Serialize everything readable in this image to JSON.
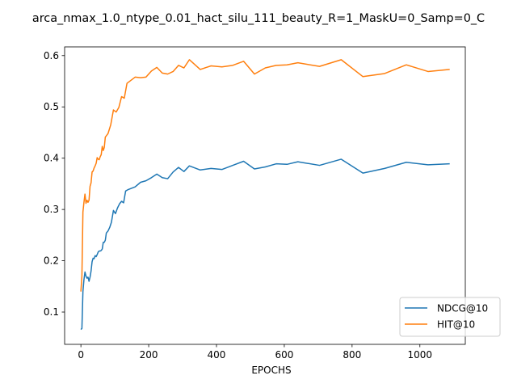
{
  "chart_data": {
    "type": "line",
    "title": "arca_nmax_1.0_ntype_0.01_hact_silu_111_beauty_R=1_MaskU=0_Samp=0_C",
    "xlabel": "EPOCHS",
    "ylabel": "",
    "xlim": [
      -48,
      1134
    ],
    "ylim": [
      0.037,
      0.617
    ],
    "xticks": [
      0,
      200,
      400,
      600,
      800,
      1000
    ],
    "yticks": [
      0.1,
      0.2,
      0.3,
      0.4,
      0.5,
      0.6
    ],
    "grid": false,
    "legend_position": "lower-right",
    "series": [
      {
        "name": "NDCG@10",
        "color": "#1f77b4",
        "points": [
          [
            0,
            0.066
          ],
          [
            3,
            0.068
          ],
          [
            6,
            0.14
          ],
          [
            9,
            0.163
          ],
          [
            12,
            0.178
          ],
          [
            15,
            0.17
          ],
          [
            18,
            0.166
          ],
          [
            21,
            0.168
          ],
          [
            24,
            0.16
          ],
          [
            27,
            0.168
          ],
          [
            30,
            0.18
          ],
          [
            33,
            0.198
          ],
          [
            36,
            0.205
          ],
          [
            39,
            0.204
          ],
          [
            42,
            0.21
          ],
          [
            45,
            0.208
          ],
          [
            48,
            0.212
          ],
          [
            51,
            0.217
          ],
          [
            54,
            0.219
          ],
          [
            57,
            0.219
          ],
          [
            60,
            0.22
          ],
          [
            63,
            0.223
          ],
          [
            66,
            0.236
          ],
          [
            69,
            0.236
          ],
          [
            72,
            0.24
          ],
          [
            75,
            0.254
          ],
          [
            80,
            0.258
          ],
          [
            85,
            0.265
          ],
          [
            90,
            0.275
          ],
          [
            96,
            0.298
          ],
          [
            102,
            0.292
          ],
          [
            108,
            0.303
          ],
          [
            114,
            0.311
          ],
          [
            120,
            0.316
          ],
          [
            126,
            0.313
          ],
          [
            132,
            0.336
          ],
          [
            140,
            0.339
          ],
          [
            160,
            0.344
          ],
          [
            176,
            0.353
          ],
          [
            192,
            0.356
          ],
          [
            208,
            0.362
          ],
          [
            224,
            0.369
          ],
          [
            240,
            0.362
          ],
          [
            256,
            0.36
          ],
          [
            272,
            0.373
          ],
          [
            288,
            0.382
          ],
          [
            304,
            0.374
          ],
          [
            320,
            0.385
          ],
          [
            352,
            0.377
          ],
          [
            384,
            0.38
          ],
          [
            416,
            0.378
          ],
          [
            448,
            0.386
          ],
          [
            480,
            0.394
          ],
          [
            512,
            0.379
          ],
          [
            544,
            0.383
          ],
          [
            576,
            0.389
          ],
          [
            608,
            0.388
          ],
          [
            640,
            0.393
          ],
          [
            704,
            0.386
          ],
          [
            768,
            0.398
          ],
          [
            832,
            0.371
          ],
          [
            896,
            0.38
          ],
          [
            960,
            0.392
          ],
          [
            1024,
            0.387
          ],
          [
            1088,
            0.389
          ]
        ]
      },
      {
        "name": "HIT@10",
        "color": "#ff7f0e",
        "points": [
          [
            0,
            0.14
          ],
          [
            3,
            0.17
          ],
          [
            6,
            0.295
          ],
          [
            9,
            0.314
          ],
          [
            12,
            0.33
          ],
          [
            15,
            0.312
          ],
          [
            18,
            0.318
          ],
          [
            21,
            0.314
          ],
          [
            24,
            0.318
          ],
          [
            27,
            0.345
          ],
          [
            30,
            0.352
          ],
          [
            33,
            0.373
          ],
          [
            36,
            0.375
          ],
          [
            39,
            0.381
          ],
          [
            42,
            0.385
          ],
          [
            45,
            0.39
          ],
          [
            48,
            0.401
          ],
          [
            51,
            0.398
          ],
          [
            54,
            0.397
          ],
          [
            57,
            0.403
          ],
          [
            60,
            0.407
          ],
          [
            63,
            0.423
          ],
          [
            66,
            0.415
          ],
          [
            69,
            0.421
          ],
          [
            72,
            0.441
          ],
          [
            80,
            0.448
          ],
          [
            88,
            0.465
          ],
          [
            96,
            0.494
          ],
          [
            104,
            0.49
          ],
          [
            112,
            0.499
          ],
          [
            120,
            0.52
          ],
          [
            128,
            0.517
          ],
          [
            136,
            0.546
          ],
          [
            160,
            0.558
          ],
          [
            176,
            0.557
          ],
          [
            192,
            0.558
          ],
          [
            208,
            0.57
          ],
          [
            224,
            0.577
          ],
          [
            240,
            0.566
          ],
          [
            256,
            0.564
          ],
          [
            272,
            0.569
          ],
          [
            288,
            0.581
          ],
          [
            304,
            0.576
          ],
          [
            320,
            0.592
          ],
          [
            352,
            0.573
          ],
          [
            384,
            0.58
          ],
          [
            416,
            0.578
          ],
          [
            448,
            0.581
          ],
          [
            480,
            0.589
          ],
          [
            512,
            0.564
          ],
          [
            544,
            0.576
          ],
          [
            576,
            0.581
          ],
          [
            608,
            0.582
          ],
          [
            640,
            0.586
          ],
          [
            704,
            0.579
          ],
          [
            768,
            0.592
          ],
          [
            832,
            0.559
          ],
          [
            896,
            0.565
          ],
          [
            960,
            0.582
          ],
          [
            1024,
            0.569
          ],
          [
            1088,
            0.573
          ]
        ]
      }
    ]
  }
}
